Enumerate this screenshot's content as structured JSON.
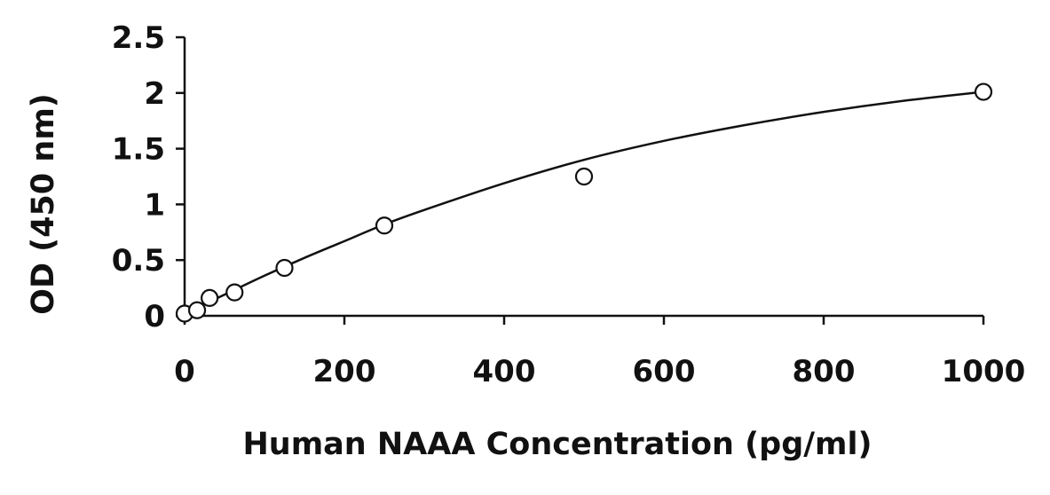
{
  "chart_data": {
    "type": "scatter",
    "title": "",
    "xlabel": "Human NAAA Concentration (pg/ml)",
    "ylabel": "OD (450 nm)",
    "xlim": [
      0,
      1000
    ],
    "ylim": [
      0,
      2.5
    ],
    "x_ticks": [
      "0",
      "200",
      "400",
      "600",
      "800",
      "1000"
    ],
    "y_ticks": [
      "0",
      "0.5",
      "1",
      "1.5",
      "2",
      "2.5"
    ],
    "grid": false,
    "legend": "none",
    "series": [
      {
        "marker": "open-circle",
        "x": [
          0,
          15.6,
          31.25,
          62.5,
          125,
          250,
          500,
          1000
        ],
        "y": [
          0.02,
          0.05,
          0.16,
          0.21,
          0.43,
          0.81,
          1.25,
          2.01
        ]
      }
    ],
    "fit_curve": {
      "type": "smooth",
      "x": [
        0,
        50,
        100,
        150,
        200,
        250,
        300,
        400,
        500,
        600,
        700,
        800,
        900,
        1000
      ],
      "y": [
        0.02,
        0.19,
        0.36,
        0.52,
        0.67,
        0.82,
        0.95,
        1.19,
        1.4,
        1.57,
        1.71,
        1.83,
        1.93,
        2.01
      ]
    },
    "colors": {
      "axis": "#111111",
      "curve": "#111111",
      "marker_stroke": "#111111",
      "marker_fill": "#ffffff"
    }
  }
}
